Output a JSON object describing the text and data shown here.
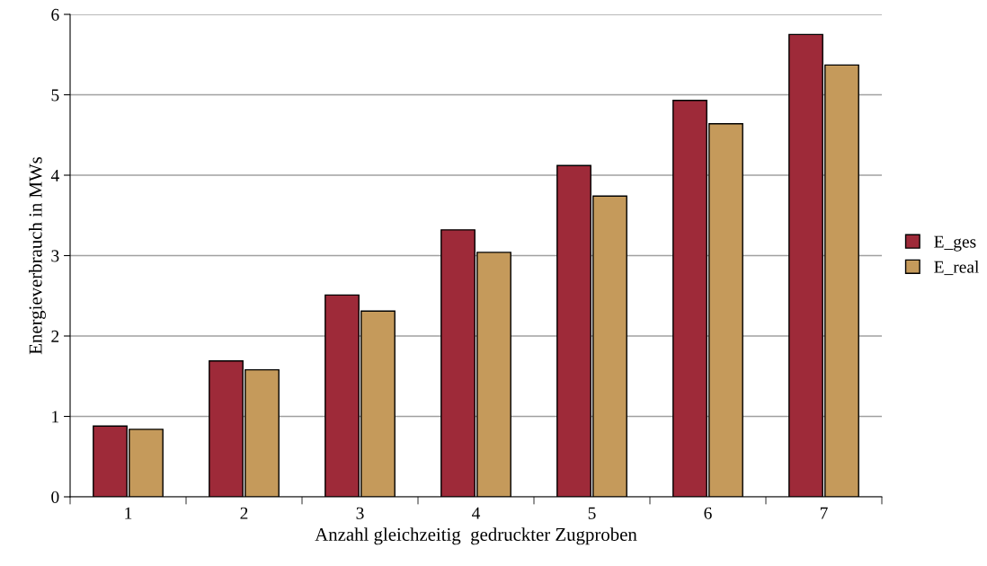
{
  "chart_data": {
    "type": "bar",
    "xlabel": "Anzahl gleichzeitig  gedruckter Zugproben",
    "ylabel": "Energieverbrauch in MWs",
    "categories": [
      "1",
      "2",
      "3",
      "4",
      "5",
      "6",
      "7"
    ],
    "series": [
      {
        "name": "E_ges",
        "color": "#9e2a39",
        "values": [
          0.88,
          1.69,
          2.51,
          3.32,
          4.12,
          4.93,
          5.75
        ]
      },
      {
        "name": "E_real",
        "color": "#c59a5b",
        "values": [
          0.84,
          1.58,
          2.31,
          3.04,
          3.74,
          4.64,
          5.37
        ]
      }
    ],
    "ylim": [
      0,
      6
    ],
    "yticks": [
      0,
      1,
      2,
      3,
      4,
      5,
      6
    ],
    "grid": "y",
    "legend": "right"
  }
}
